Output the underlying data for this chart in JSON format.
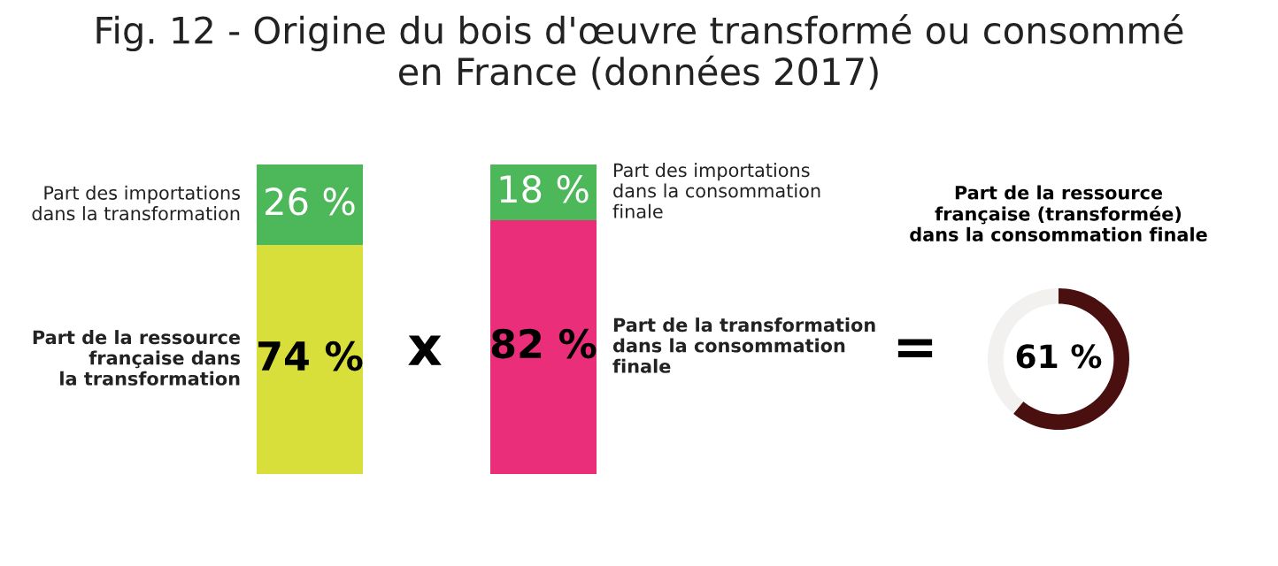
{
  "chart_data": [
    {
      "type": "bar",
      "stacked": true,
      "title": "Fig. 12 - Origine du bois d'œuvre transformé ou consommé\nen France (données 2017)",
      "categories": [
        null
      ],
      "ylim": [
        0,
        100
      ],
      "series": [
        {
          "name": "Part de la ressource\nfrançaise dans\nla transformation",
          "color": "#d9df3a",
          "values": [
            74
          ],
          "value_labels": [
            "74 %"
          ]
        },
        {
          "name": "Part des importations\ndans la transformation",
          "color": "#4cb85a",
          "values": [
            26
          ],
          "value_labels": [
            "26 %"
          ]
        }
      ]
    },
    {
      "type": "bar",
      "stacked": true,
      "categories": [
        null
      ],
      "ylim": [
        0,
        100
      ],
      "annotations": [
        "x"
      ],
      "series": [
        {
          "name": "Part de la transformation\ndans la consommation\nfinale",
          "color": "#ea2e7a",
          "values": [
            82
          ],
          "value_labels": [
            "82 %"
          ]
        },
        {
          "name": "Part des importations\ndans la consommation\nfinale",
          "color": "#4cb85a",
          "values": [
            18
          ],
          "value_labels": [
            "18 %"
          ]
        }
      ]
    },
    {
      "type": "donut",
      "title": "Part de la ressource\nfrançaise (transformée)\ndans la consommation finale",
      "categories": [
        null,
        null
      ],
      "values": [
        61,
        39
      ],
      "colors": [
        "#4a0f0f",
        "#f3f0f0"
      ],
      "value_labels": [
        "61 %",
        null
      ],
      "annotations": [
        "="
      ]
    }
  ]
}
